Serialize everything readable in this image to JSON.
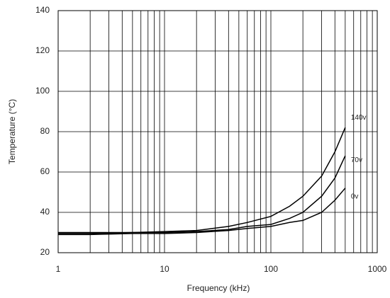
{
  "chart_data": {
    "type": "line",
    "x_label": "Frequency (kHz)",
    "y_label": "Temperature (°C)",
    "x": [
      1,
      2,
      5,
      10,
      20,
      40,
      60,
      100,
      150,
      200,
      300,
      400,
      500
    ],
    "series": [
      {
        "name": "140v",
        "color": "#000000",
        "values": [
          30,
          30,
          30,
          30.5,
          31,
          33,
          35,
          38,
          43,
          48,
          58,
          70,
          82
        ]
      },
      {
        "name": "70v",
        "color": "#000000",
        "values": [
          29.5,
          29.5,
          30,
          30,
          30.5,
          31.5,
          33,
          34,
          37,
          40,
          48,
          57,
          68
        ]
      },
      {
        "name": "0v",
        "color": "#000000",
        "values": [
          29,
          29,
          29.5,
          29.5,
          30,
          31,
          32,
          33,
          35,
          36,
          40,
          46,
          52
        ]
      }
    ],
    "xlim": [
      1,
      1000
    ],
    "xticks": [
      1,
      10,
      100,
      1000
    ],
    "xscale": "log",
    "ylim": [
      20,
      140
    ],
    "yticks": [
      20,
      40,
      60,
      80,
      100,
      120,
      140
    ],
    "grid": true
  }
}
